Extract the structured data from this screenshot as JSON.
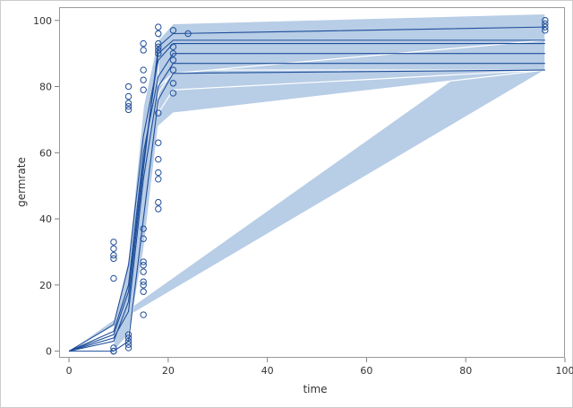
{
  "chart_data": {
    "type": "scatter",
    "title": "",
    "xlabel": "time",
    "ylabel": "germrate",
    "xlim": [
      -2,
      100
    ],
    "ylim": [
      -2,
      104
    ],
    "xticks": [
      0,
      20,
      40,
      60,
      80,
      100
    ],
    "yticks": [
      0,
      20,
      40,
      60,
      80,
      100
    ],
    "grid": false,
    "legend": "none",
    "colors": {
      "marker": "#1f4e9a",
      "line": "#1f4e9a",
      "band": "#b8cde6",
      "axis": "#7f7f7f",
      "frame": "#999999"
    },
    "observations": [
      {
        "x": 9,
        "y": 33
      },
      {
        "x": 9,
        "y": 31
      },
      {
        "x": 9,
        "y": 29
      },
      {
        "x": 9,
        "y": 28
      },
      {
        "x": 9,
        "y": 22
      },
      {
        "x": 9,
        "y": 1
      },
      {
        "x": 9,
        "y": 0
      },
      {
        "x": 9,
        "y": 0
      },
      {
        "x": 12,
        "y": 80
      },
      {
        "x": 12,
        "y": 77
      },
      {
        "x": 12,
        "y": 75
      },
      {
        "x": 12,
        "y": 74
      },
      {
        "x": 12,
        "y": 73
      },
      {
        "x": 12,
        "y": 5
      },
      {
        "x": 12,
        "y": 4
      },
      {
        "x": 12,
        "y": 3
      },
      {
        "x": 12,
        "y": 2
      },
      {
        "x": 12,
        "y": 1
      },
      {
        "x": 15,
        "y": 93
      },
      {
        "x": 15,
        "y": 91
      },
      {
        "x": 15,
        "y": 85
      },
      {
        "x": 15,
        "y": 82
      },
      {
        "x": 15,
        "y": 79
      },
      {
        "x": 15,
        "y": 37
      },
      {
        "x": 15,
        "y": 34
      },
      {
        "x": 15,
        "y": 27
      },
      {
        "x": 15,
        "y": 26
      },
      {
        "x": 15,
        "y": 24
      },
      {
        "x": 15,
        "y": 21
      },
      {
        "x": 15,
        "y": 20
      },
      {
        "x": 15,
        "y": 18
      },
      {
        "x": 15,
        "y": 11
      },
      {
        "x": 18,
        "y": 98
      },
      {
        "x": 18,
        "y": 96
      },
      {
        "x": 18,
        "y": 93
      },
      {
        "x": 18,
        "y": 92
      },
      {
        "x": 18,
        "y": 91
      },
      {
        "x": 18,
        "y": 90
      },
      {
        "x": 18,
        "y": 72
      },
      {
        "x": 18,
        "y": 63
      },
      {
        "x": 18,
        "y": 58
      },
      {
        "x": 18,
        "y": 54
      },
      {
        "x": 18,
        "y": 52
      },
      {
        "x": 18,
        "y": 45
      },
      {
        "x": 18,
        "y": 43
      },
      {
        "x": 21,
        "y": 97
      },
      {
        "x": 21,
        "y": 92
      },
      {
        "x": 21,
        "y": 90
      },
      {
        "x": 21,
        "y": 88
      },
      {
        "x": 21,
        "y": 85
      },
      {
        "x": 21,
        "y": 81
      },
      {
        "x": 21,
        "y": 78
      },
      {
        "x": 24,
        "y": 96
      },
      {
        "x": 96,
        "y": 100
      },
      {
        "x": 96,
        "y": 99
      },
      {
        "x": 96,
        "y": 98
      },
      {
        "x": 96,
        "y": 97
      }
    ],
    "series": [
      {
        "x": [
          0,
          9,
          12,
          15,
          18,
          21,
          96
        ],
        "y": [
          0,
          0,
          3,
          40,
          76,
          84,
          85
        ]
      },
      {
        "x": [
          0,
          9,
          12,
          15,
          18,
          21,
          96
        ],
        "y": [
          0,
          4,
          12,
          52,
          80,
          87,
          87
        ]
      },
      {
        "x": [
          0,
          9,
          12,
          15,
          18,
          21,
          96
        ],
        "y": [
          0,
          6,
          20,
          60,
          83,
          90,
          90
        ]
      },
      {
        "x": [
          0,
          9,
          12,
          15,
          18,
          21,
          96
        ],
        "y": [
          0,
          8,
          26,
          65,
          88,
          93,
          93
        ]
      },
      {
        "x": [
          0,
          9,
          12,
          15,
          18,
          21,
          96
        ],
        "y": [
          0,
          5,
          18,
          57,
          90,
          94,
          94
        ]
      },
      {
        "x": [
          0,
          9,
          12,
          15,
          18,
          21,
          96
        ],
        "y": [
          0,
          3,
          15,
          55,
          92,
          96,
          98
        ]
      }
    ],
    "bands": [
      {
        "x": [
          0,
          96
        ],
        "lower": [
          0,
          85
        ],
        "upper": [
          0,
          102
        ]
      },
      {
        "x": [
          9,
          12,
          15,
          18,
          21,
          96
        ],
        "lower": [
          0,
          5,
          30,
          68,
          72,
          85
        ],
        "upper": [
          8,
          28,
          74,
          95,
          98,
          102
        ]
      },
      {
        "x": [
          18,
          21,
          96
        ],
        "lower": [
          72,
          79,
          85
        ],
        "upper": [
          78,
          85,
          85
        ]
      },
      {
        "x": [
          18,
          21,
          96
        ],
        "lower": [
          80,
          84,
          94
        ],
        "upper": [
          94,
          99,
          102
        ]
      }
    ]
  }
}
